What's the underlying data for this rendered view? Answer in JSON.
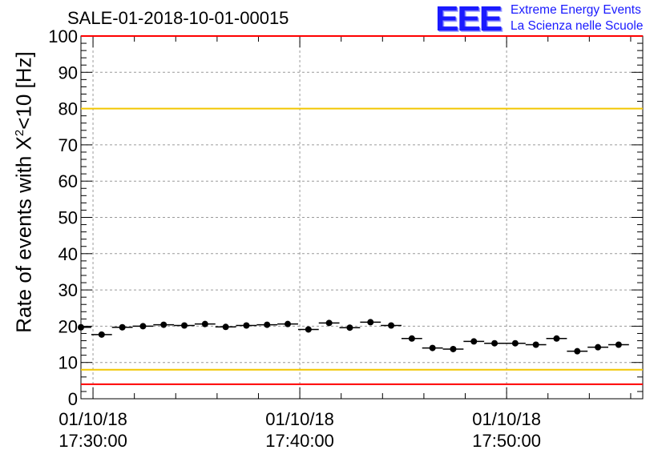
{
  "header": {
    "run_title": "SALE-01-2018-10-01-00015",
    "logo_text": "EEE",
    "logo_line1": "Extreme Energy Events",
    "logo_line2": "La Scienza nelle Scuole",
    "logo_color": "#1a1aff"
  },
  "chart_data": {
    "type": "scatter",
    "title": "",
    "ylabel_prefix": "Rate of events with X",
    "ylabel_sup": "2",
    "ylabel_suffix": "<10 [Hz]",
    "ylim": [
      0,
      100
    ],
    "xlim": [
      "2018-10-01 17:29:25",
      "2018-10-01 17:56:35"
    ],
    "yticks": [
      0,
      10,
      20,
      30,
      40,
      50,
      60,
      70,
      80,
      90,
      100
    ],
    "xticks": [
      {
        "t": "2018-10-01 17:30:00",
        "date": "01/10/18",
        "time": "17:30:00"
      },
      {
        "t": "2018-10-01 17:40:00",
        "date": "01/10/18",
        "time": "17:40:00"
      },
      {
        "t": "2018-10-01 17:50:00",
        "date": "01/10/18",
        "time": "17:50:00"
      }
    ],
    "grid": true,
    "bin_width_seconds": 60,
    "series": [
      {
        "marker": "circle",
        "color": "#000000",
        "points": [
          {
            "x": "2018-10-01 17:29:25",
            "y": 19.7
          },
          {
            "x": "2018-10-01 17:30:25",
            "y": 17.7
          },
          {
            "x": "2018-10-01 17:31:25",
            "y": 19.7
          },
          {
            "x": "2018-10-01 17:32:25",
            "y": 20.0
          },
          {
            "x": "2018-10-01 17:33:25",
            "y": 20.4
          },
          {
            "x": "2018-10-01 17:34:25",
            "y": 20.2
          },
          {
            "x": "2018-10-01 17:35:25",
            "y": 20.6
          },
          {
            "x": "2018-10-01 17:36:25",
            "y": 19.8
          },
          {
            "x": "2018-10-01 17:37:25",
            "y": 20.2
          },
          {
            "x": "2018-10-01 17:38:25",
            "y": 20.4
          },
          {
            "x": "2018-10-01 17:39:25",
            "y": 20.6
          },
          {
            "x": "2018-10-01 17:40:25",
            "y": 19.1
          },
          {
            "x": "2018-10-01 17:41:25",
            "y": 20.9
          },
          {
            "x": "2018-10-01 17:42:25",
            "y": 19.6
          },
          {
            "x": "2018-10-01 17:43:25",
            "y": 21.1
          },
          {
            "x": "2018-10-01 17:44:25",
            "y": 20.2
          },
          {
            "x": "2018-10-01 17:45:25",
            "y": 16.6
          },
          {
            "x": "2018-10-01 17:46:25",
            "y": 14.0
          },
          {
            "x": "2018-10-01 17:47:25",
            "y": 13.7
          },
          {
            "x": "2018-10-01 17:48:25",
            "y": 15.8
          },
          {
            "x": "2018-10-01 17:49:25",
            "y": 15.3
          },
          {
            "x": "2018-10-01 17:50:25",
            "y": 15.3
          },
          {
            "x": "2018-10-01 17:51:25",
            "y": 14.9
          },
          {
            "x": "2018-10-01 17:52:25",
            "y": 16.6
          },
          {
            "x": "2018-10-01 17:53:25",
            "y": 13.1
          },
          {
            "x": "2018-10-01 17:54:25",
            "y": 14.2
          },
          {
            "x": "2018-10-01 17:55:25",
            "y": 14.9
          }
        ]
      }
    ],
    "reference_lines": [
      {
        "y": 100,
        "color": "#ff0000"
      },
      {
        "y": 80,
        "color": "#f2c600"
      },
      {
        "y": 8,
        "color": "#f2c600"
      },
      {
        "y": 4,
        "color": "#ff0000"
      }
    ]
  }
}
